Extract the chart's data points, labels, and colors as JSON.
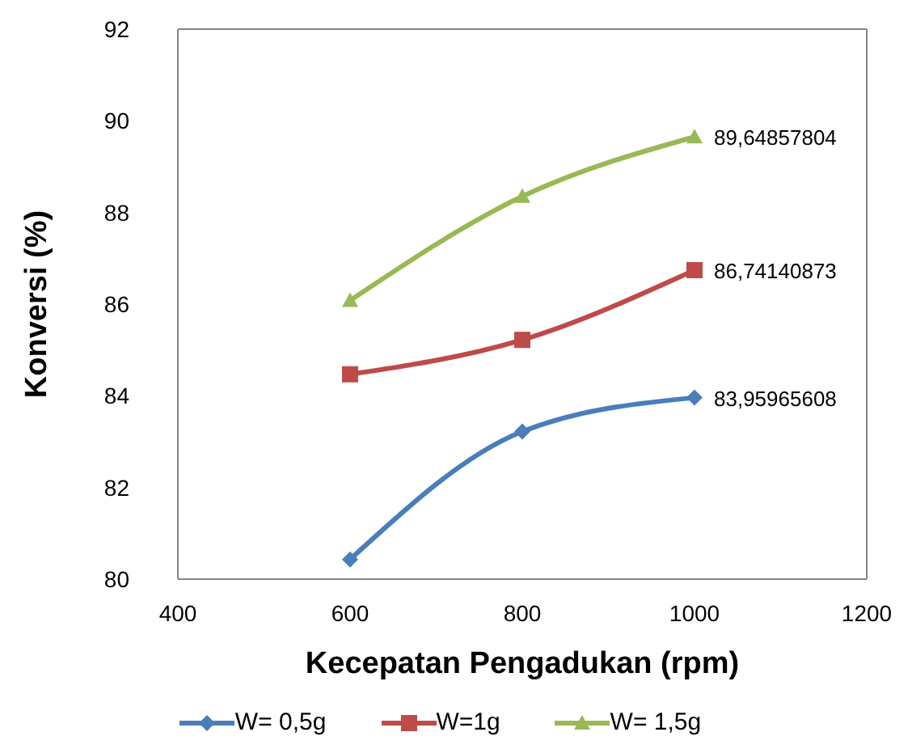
{
  "chart_data": {
    "type": "line",
    "xlabel": "Kecepatan Pengadukan (rpm)",
    "ylabel": "Konversi (%)",
    "x": [
      600,
      800,
      1000
    ],
    "series": [
      {
        "name": "W= 0,5g",
        "color": "#4a7ebb",
        "marker": "diamond",
        "values": [
          80.43,
          83.22,
          83.95965608
        ],
        "value_labels": [
          null,
          null,
          "83,95965608"
        ]
      },
      {
        "name": "W=1g",
        "color": "#be4b48",
        "marker": "square",
        "values": [
          84.47,
          85.22,
          86.74140873
        ],
        "value_labels": [
          null,
          null,
          "86,74140873"
        ]
      },
      {
        "name": "W= 1,5g",
        "color": "#98b954",
        "marker": "triangle",
        "values": [
          86.08,
          88.35,
          89.64857804
        ],
        "value_labels": [
          null,
          null,
          "89,64857804"
        ]
      }
    ],
    "xlim": [
      400,
      1200
    ],
    "xticks": [
      400,
      600,
      800,
      1000,
      1200
    ],
    "ylim": [
      80,
      92
    ],
    "yticks": [
      80,
      82,
      84,
      86,
      88,
      90,
      92
    ],
    "grid": false,
    "legend": "bottom"
  }
}
